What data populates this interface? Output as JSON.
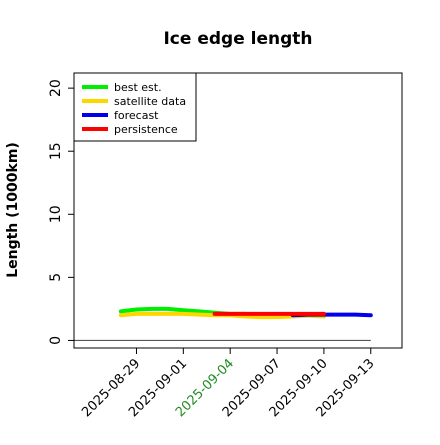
{
  "chart_data": {
    "type": "line",
    "title": "Ice edge length",
    "xlabel": "",
    "ylabel": "Length (1000km)",
    "ylim": [
      -0.6,
      21.2
    ],
    "yticks": [
      0,
      5,
      10,
      15,
      20
    ],
    "xlim": [
      "2025-08-25",
      "2025-09-15"
    ],
    "xticks": [
      "2025-08-29",
      "2025-09-01",
      "2025-09-04",
      "2025-09-07",
      "2025-09-10",
      "2025-09-13"
    ],
    "highlight_tick": "2025-09-04",
    "highlight_color": "#228b22",
    "grid": false,
    "legend_position": "top-left",
    "baseline": {
      "y": 0,
      "x_from": "2025-08-25",
      "x_to": "2025-09-13",
      "color": "#555555"
    },
    "series": [
      {
        "name": "best est.",
        "color": "#00ee00",
        "x": [
          "2025-08-28",
          "2025-08-29",
          "2025-08-30",
          "2025-08-31",
          "2025-09-01",
          "2025-09-02",
          "2025-09-03",
          "2025-09-04",
          "2025-09-05"
        ],
        "y": [
          2.3,
          2.45,
          2.5,
          2.5,
          2.4,
          2.3,
          2.2,
          2.1,
          2.1
        ]
      },
      {
        "name": "satellite data",
        "color": "#ffd700",
        "x": [
          "2025-08-28",
          "2025-08-29",
          "2025-08-30",
          "2025-08-31",
          "2025-09-01",
          "2025-09-02",
          "2025-09-03",
          "2025-09-04",
          "2025-09-05",
          "2025-09-06",
          "2025-09-07",
          "2025-09-08",
          "2025-09-09",
          "2025-09-10"
        ],
        "y": [
          2.0,
          2.1,
          2.1,
          2.1,
          2.1,
          2.05,
          2.0,
          2.0,
          1.9,
          1.85,
          1.85,
          1.9,
          1.95,
          1.9
        ]
      },
      {
        "name": "forecast",
        "color": "#0000ee",
        "x": [
          "2025-09-08",
          "2025-09-09",
          "2025-09-10",
          "2025-09-11",
          "2025-09-12",
          "2025-09-13"
        ],
        "y": [
          2.0,
          2.05,
          2.05,
          2.05,
          2.05,
          2.0
        ]
      },
      {
        "name": "persistence",
        "color": "#ff0000",
        "x": [
          "2025-09-03",
          "2025-09-04",
          "2025-09-05",
          "2025-09-06",
          "2025-09-07",
          "2025-09-08",
          "2025-09-09",
          "2025-09-10"
        ],
        "y": [
          2.1,
          2.1,
          2.1,
          2.1,
          2.1,
          2.1,
          2.1,
          2.1
        ]
      }
    ]
  }
}
